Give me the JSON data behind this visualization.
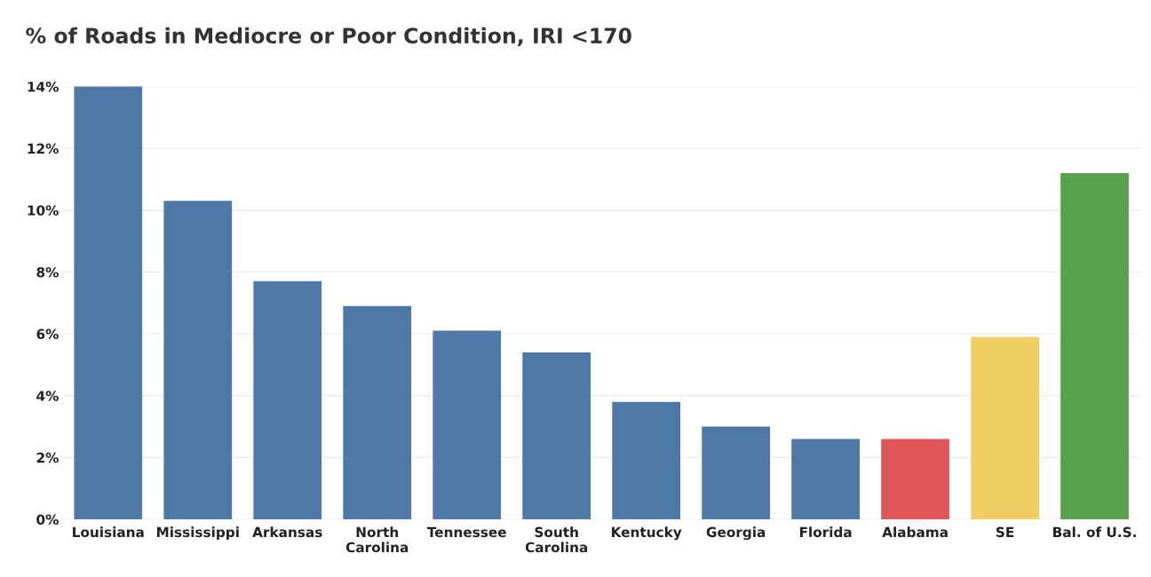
{
  "chart_data": {
    "type": "bar",
    "title": "% of Roads in Mediocre or Poor Condition, IRI <170",
    "categories": [
      "Louisiana",
      "Mississippi",
      "Arkansas",
      "North\nCarolina",
      "Tennessee",
      "South\nCarolina",
      "Kentucky",
      "Georgia",
      "Florida",
      "Alabama",
      "SE",
      "Bal. of U.S."
    ],
    "values": [
      14.0,
      10.3,
      7.7,
      6.9,
      6.1,
      5.4,
      3.8,
      3.0,
      2.6,
      2.6,
      5.9,
      11.2
    ],
    "colors": [
      "#4e79a7",
      "#4e79a7",
      "#4e79a7",
      "#4e79a7",
      "#4e79a7",
      "#4e79a7",
      "#4e79a7",
      "#4e79a7",
      "#4e79a7",
      "#e15759",
      "#f0ce64",
      "#59a14f"
    ],
    "ylim": [
      0,
      14
    ],
    "yticks": [
      {
        "value": 0,
        "label": "0%"
      },
      {
        "value": 2,
        "label": "2%"
      },
      {
        "value": 4,
        "label": "4%"
      },
      {
        "value": 6,
        "label": "6%"
      },
      {
        "value": 8,
        "label": "8%"
      },
      {
        "value": 10,
        "label": "10%"
      },
      {
        "value": 12,
        "label": "12%"
      },
      {
        "value": 14,
        "label": "14%"
      }
    ],
    "grid": "y",
    "legend": false
  }
}
